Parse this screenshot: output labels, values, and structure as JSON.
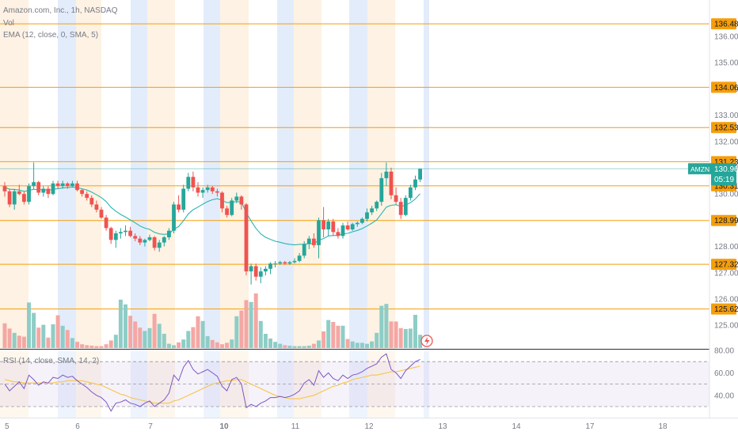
{
  "legend": {
    "title": "Amazon.com, Inc., 1h, NASDAQ",
    "volume": "Vol",
    "ema": "EMA (12, close, 0, SMA, 5)",
    "rsi": "RSI (14, close, SMA, 14, 2)"
  },
  "ticker": {
    "symbol": "AMZN",
    "price": "130.96",
    "countdown": "05:19"
  },
  "colors": {
    "up": "#26a69a",
    "down": "#ef5350",
    "vol_up": "#8ecdc6",
    "vol_down": "#f4a7a4",
    "ema": "#2ab6b1",
    "rsi": "#7e57c2",
    "rsi_ma": "#f7c548",
    "level": "#f59e0b",
    "blue_band": "#e3ecfb",
    "orange_band": "#fdf2e3",
    "badge": "#f59e0b",
    "ticker_badge": "#26a69a"
  },
  "chart_data": [
    {
      "type": "candlestick",
      "title": "Amazon.com, Inc., 1h, NASDAQ",
      "x_ticks": [
        "5",
        "6",
        "7",
        "10",
        "11",
        "12",
        "13",
        "14",
        "17",
        "18"
      ],
      "y_ticks": [
        "136.00",
        "135.00",
        "134.00",
        "133.00",
        "132.00",
        "131.00",
        "130.00",
        "129.00",
        "128.00",
        "127.00",
        "126.00",
        "125.00"
      ],
      "ylim": [
        124.6,
        136.9
      ],
      "horizontal_levels": [
        "136.48",
        "134.06",
        "132.53",
        "131.23",
        "130.31",
        "128.99",
        "127.32",
        "125.62"
      ],
      "last_price": 130.96,
      "ohlc": [
        [
          130.3,
          130.45,
          129.9,
          130.1
        ],
        [
          130.1,
          130.2,
          129.5,
          129.6
        ],
        [
          129.6,
          130.2,
          129.4,
          130.1
        ],
        [
          130.1,
          130.35,
          129.95,
          130.0
        ],
        [
          130.0,
          130.1,
          129.6,
          129.7
        ],
        [
          129.7,
          130.4,
          129.6,
          130.3
        ],
        [
          130.3,
          131.2,
          130.2,
          130.45
        ],
        [
          130.45,
          130.5,
          129.95,
          130.05
        ],
        [
          130.05,
          130.3,
          129.9,
          130.2
        ],
        [
          130.2,
          130.3,
          129.85,
          130.0
        ],
        [
          130.0,
          130.5,
          129.95,
          130.4
        ],
        [
          130.4,
          130.5,
          130.2,
          130.3
        ],
        [
          130.3,
          130.5,
          130.2,
          130.4
        ],
        [
          130.4,
          130.45,
          130.2,
          130.3
        ],
        [
          130.3,
          130.5,
          130.25,
          130.4
        ],
        [
          130.4,
          130.5,
          130.1,
          130.15
        ],
        [
          130.15,
          130.2,
          129.9,
          130.0
        ],
        [
          130.0,
          130.1,
          129.75,
          129.85
        ],
        [
          129.85,
          129.95,
          129.5,
          129.6
        ],
        [
          129.6,
          129.75,
          129.3,
          129.4
        ],
        [
          129.4,
          129.5,
          129.05,
          129.1
        ],
        [
          129.1,
          129.2,
          128.6,
          128.7
        ],
        [
          128.7,
          128.75,
          128.1,
          128.25
        ],
        [
          128.25,
          128.6,
          127.95,
          128.5
        ],
        [
          128.5,
          128.7,
          128.3,
          128.55
        ],
        [
          128.55,
          128.8,
          128.4,
          128.6
        ],
        [
          128.6,
          128.75,
          128.35,
          128.4
        ],
        [
          128.4,
          128.5,
          128.2,
          128.3
        ],
        [
          128.3,
          128.4,
          128.05,
          128.15
        ],
        [
          128.15,
          128.3,
          128.0,
          128.25
        ],
        [
          128.25,
          128.45,
          128.2,
          128.35
        ],
        [
          128.35,
          128.4,
          127.85,
          127.95
        ],
        [
          127.95,
          128.25,
          127.8,
          128.15
        ],
        [
          128.15,
          128.4,
          128.0,
          128.35
        ],
        [
          128.35,
          128.7,
          128.25,
          128.6
        ],
        [
          128.6,
          129.7,
          128.5,
          129.6
        ],
        [
          129.6,
          129.95,
          129.3,
          129.4
        ],
        [
          129.4,
          130.35,
          129.3,
          130.2
        ],
        [
          130.2,
          130.8,
          130.1,
          130.65
        ],
        [
          130.65,
          130.85,
          130.1,
          130.25
        ],
        [
          130.25,
          130.45,
          129.9,
          130.05
        ],
        [
          130.05,
          130.25,
          129.85,
          130.15
        ],
        [
          130.15,
          130.35,
          130.05,
          130.25
        ],
        [
          130.25,
          130.3,
          130.0,
          130.1
        ],
        [
          130.1,
          130.2,
          129.9,
          130.05
        ],
        [
          130.05,
          130.1,
          129.3,
          129.45
        ],
        [
          129.45,
          129.55,
          129.1,
          129.2
        ],
        [
          129.2,
          129.85,
          129.15,
          129.75
        ],
        [
          129.75,
          130.05,
          129.65,
          129.9
        ],
        [
          129.9,
          129.95,
          129.4,
          129.6
        ],
        [
          129.6,
          129.65,
          126.9,
          127.05
        ],
        [
          127.05,
          127.35,
          126.55,
          127.25
        ],
        [
          127.25,
          127.35,
          126.7,
          126.85
        ],
        [
          126.85,
          127.2,
          126.6,
          127.05
        ],
        [
          127.05,
          127.25,
          126.9,
          127.15
        ],
        [
          127.15,
          127.4,
          126.95,
          127.35
        ],
        [
          127.35,
          127.45,
          127.2,
          127.35
        ],
        [
          127.35,
          127.45,
          127.3,
          127.4
        ],
        [
          127.4,
          127.45,
          127.3,
          127.35
        ],
        [
          127.35,
          127.45,
          127.3,
          127.4
        ],
        [
          127.4,
          127.55,
          127.35,
          127.45
        ],
        [
          127.45,
          127.75,
          127.4,
          127.65
        ],
        [
          127.65,
          128.2,
          127.55,
          128.1
        ],
        [
          128.1,
          128.4,
          127.9,
          128.3
        ],
        [
          128.3,
          128.5,
          127.95,
          128.05
        ],
        [
          128.05,
          129.1,
          127.55,
          129.0
        ],
        [
          129.0,
          129.5,
          128.35,
          128.65
        ],
        [
          128.65,
          129.05,
          128.4,
          128.95
        ],
        [
          128.95,
          129.05,
          128.4,
          128.55
        ],
        [
          128.55,
          128.7,
          128.3,
          128.4
        ],
        [
          128.4,
          128.9,
          128.3,
          128.8
        ],
        [
          128.8,
          128.95,
          128.6,
          128.65
        ],
        [
          128.65,
          128.9,
          128.6,
          128.85
        ],
        [
          128.85,
          128.95,
          128.75,
          128.9
        ],
        [
          128.9,
          129.1,
          128.85,
          129.05
        ],
        [
          129.05,
          129.45,
          128.95,
          129.3
        ],
        [
          129.3,
          129.55,
          129.2,
          129.45
        ],
        [
          129.45,
          129.75,
          129.35,
          129.7
        ],
        [
          129.7,
          130.8,
          129.55,
          130.6
        ],
        [
          130.6,
          131.2,
          130.3,
          130.85
        ],
        [
          130.85,
          131.0,
          129.8,
          129.95
        ],
        [
          129.95,
          130.25,
          129.6,
          129.7
        ],
        [
          129.7,
          129.85,
          129.05,
          129.2
        ],
        [
          129.2,
          129.95,
          129.15,
          129.85
        ],
        [
          129.85,
          130.35,
          129.75,
          130.25
        ],
        [
          130.25,
          130.7,
          130.15,
          130.55
        ],
        [
          130.55,
          130.96,
          130.45,
          130.96
        ]
      ],
      "ema": [
        130.25,
        130.18,
        130.17,
        130.15,
        130.1,
        130.13,
        130.18,
        130.16,
        130.17,
        130.14,
        130.18,
        130.2,
        130.23,
        130.24,
        130.26,
        130.24,
        130.2,
        130.15,
        130.07,
        129.97,
        129.86,
        129.71,
        129.49,
        129.34,
        129.22,
        129.12,
        129.01,
        128.9,
        128.78,
        128.7,
        128.65,
        128.54,
        128.48,
        128.46,
        128.48,
        128.65,
        128.76,
        128.98,
        129.24,
        129.4,
        129.5,
        129.61,
        129.71,
        129.78,
        129.82,
        129.76,
        129.67,
        129.68,
        129.71,
        129.69,
        129.29,
        128.97,
        128.69,
        128.48,
        128.35,
        128.27,
        128.2,
        128.16,
        128.11,
        128.08,
        128.06,
        128.08,
        128.08,
        128.11,
        128.1,
        128.24,
        128.3,
        128.4,
        128.42,
        128.42,
        128.48,
        128.5,
        128.56,
        128.61,
        128.68,
        128.78,
        128.89,
        129.01,
        129.25,
        129.5,
        129.57,
        129.59,
        129.53,
        129.57,
        129.67,
        129.81,
        130.01
      ],
      "volume": [
        5.2,
        4.1,
        3.2,
        2.6,
        2.4,
        9.6,
        7.4,
        4.3,
        4.9,
        2.2,
        5.0,
        6.9,
        4.7,
        3.8,
        2.1,
        1.3,
        0.8,
        0.6,
        0.5,
        0.4,
        0.4,
        0.8,
        1.6,
        2.8,
        10.2,
        9.2,
        6.8,
        5.6,
        4.3,
        3.6,
        4.2,
        7.2,
        5.1,
        3.0,
        0.9,
        0.6,
        1.2,
        1.8,
        3.6,
        4.4,
        6.7,
        5.7,
        2.5,
        1.7,
        1.2,
        0.8,
        1.1,
        1.8,
        6.7,
        7.9,
        10.1,
        9.7,
        11.5,
        5.7,
        3.0,
        2.0,
        1.3,
        0.9,
        0.6,
        0.5,
        0.4,
        0.4,
        0.4,
        0.5,
        0.9,
        1.6,
        3.5,
        5.9,
        5.5,
        4.7,
        4.7,
        1.9,
        1.4,
        1.1,
        1.1,
        0.9,
        1.4,
        3.2,
        8.9,
        9.3,
        5.6,
        5.6,
        4.2,
        4.0,
        4.1,
        7.0,
        2.8
      ],
      "rsi": [
        50,
        44,
        48,
        52,
        46,
        58,
        54,
        49,
        52,
        51,
        56,
        55,
        58,
        56,
        57,
        53,
        50,
        47,
        43,
        40,
        38,
        34,
        26,
        33,
        34,
        36,
        33,
        32,
        30,
        33,
        35,
        30,
        33,
        36,
        42,
        58,
        53,
        65,
        71,
        63,
        59,
        61,
        63,
        60,
        57,
        48,
        44,
        54,
        56,
        50,
        29,
        32,
        30,
        33,
        35,
        38,
        38,
        39,
        38,
        39,
        41,
        44,
        51,
        54,
        49,
        62,
        56,
        60,
        55,
        53,
        58,
        55,
        58,
        59,
        61,
        64,
        66,
        68,
        74,
        77,
        63,
        60,
        55,
        62,
        66,
        70,
        72
      ],
      "rsi_ma": [
        54,
        53,
        52,
        52,
        51,
        51,
        51,
        51,
        51,
        51,
        51,
        52,
        52,
        53,
        53,
        53,
        53,
        52,
        51,
        50,
        49,
        47,
        45,
        43,
        41,
        40,
        38,
        37,
        36,
        35,
        34,
        33,
        33,
        33,
        33,
        35,
        36,
        38,
        40,
        42,
        44,
        46,
        48,
        50,
        51,
        52,
        53,
        53,
        54,
        54,
        52,
        50,
        48,
        46,
        44,
        42,
        40,
        39,
        38,
        37,
        37,
        37,
        38,
        39,
        40,
        42,
        44,
        46,
        48,
        49,
        51,
        52,
        54,
        55,
        56,
        57,
        58,
        58,
        59,
        60,
        61,
        61,
        62,
        63,
        64,
        65,
        66
      ],
      "rsi_ticks": [
        "80.00",
        "60.00",
        "40.00"
      ],
      "rsi_levels": [
        70,
        50,
        30
      ]
    }
  ]
}
